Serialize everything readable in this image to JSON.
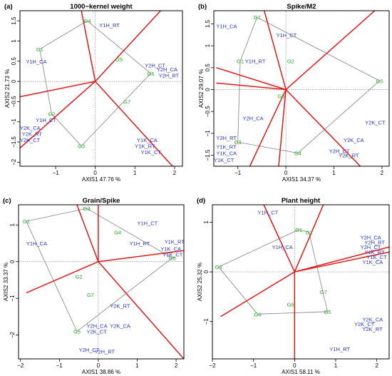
{
  "chart_data": [
    {
      "type": "scatter",
      "panel_letter": "(a)",
      "title": "1000−kernel weight",
      "xlabel": "AXIS1 47.76 %",
      "ylabel": "AXIS2 21.73 %",
      "xlim": [
        -1.9,
        2.2
      ],
      "ylim": [
        -2.1,
        1.75
      ],
      "xticks": [
        -1,
        0,
        1,
        2
      ],
      "yticks": [
        -2.0,
        -1.5,
        -1.0,
        -0.5,
        0.0,
        0.5,
        1.0,
        1.5
      ],
      "genotypes": [
        {
          "label": "G1",
          "x": -1.4,
          "y": 0.8
        },
        {
          "label": "G2",
          "x": -1.1,
          "y": -0.8
        },
        {
          "label": "G3",
          "x": -0.35,
          "y": -1.6
        },
        {
          "label": "G4",
          "x": -0.2,
          "y": 1.5
        },
        {
          "label": "G5",
          "x": 0.6,
          "y": 0.55
        },
        {
          "label": "G6",
          "x": 1.4,
          "y": 0.2
        },
        {
          "label": "G7",
          "x": 0.8,
          "y": -0.5
        }
      ],
      "hull": [
        "G4",
        "G1",
        "G2",
        "G3",
        "G6"
      ],
      "environments": [
        {
          "label": "Y1H_RT",
          "x": 0.1,
          "y": 1.4
        },
        {
          "label": "Y1H_CA",
          "x": -1.75,
          "y": 0.5
        },
        {
          "label": "Y1H_CT",
          "x": -1.5,
          "y": -0.95
        },
        {
          "label": "Y2K_CA",
          "x": -1.9,
          "y": -1.15
        },
        {
          "label": "Y2K_RT",
          "x": -1.85,
          "y": -1.3
        },
        {
          "label": "Y2K_CT",
          "x": -1.9,
          "y": -1.45
        },
        {
          "label": "Y2H_CT",
          "x": 1.25,
          "y": 0.4
        },
        {
          "label": "Y2H_CA",
          "x": 1.55,
          "y": 0.3
        },
        {
          "label": "Y2H_RT",
          "x": 1.6,
          "y": 0.15
        },
        {
          "label": "Y1K_CA",
          "x": 1.05,
          "y": -1.45
        },
        {
          "label": "Y1K_RT",
          "x": 1.0,
          "y": -1.6
        },
        {
          "label": "Y1K_CT",
          "x": 1.15,
          "y": -1.75
        }
      ],
      "rays": [
        [
          -0.35,
          1.75
        ],
        [
          1.65,
          1.75
        ],
        [
          -1.9,
          -0.38
        ],
        [
          1.95,
          -2.1
        ],
        [
          -1.9,
          -1.65
        ]
      ]
    },
    {
      "type": "scatter",
      "panel_letter": "(b)",
      "title": "Spike/M2",
      "xlabel": "AXIS1 34.37 %",
      "ylabel": "AXIS2 29.07 %",
      "xlim": [
        -1.5,
        2.15
      ],
      "ylim": [
        -1.75,
        1.8
      ],
      "xticks": [
        -1,
        0,
        1,
        2
      ],
      "yticks": [
        -1.5,
        -1.0,
        -0.5,
        0.0,
        0.5,
        1.0,
        1.5
      ],
      "genotypes": [
        {
          "label": "G1",
          "x": -0.95,
          "y": 0.65
        },
        {
          "label": "G2",
          "x": 0.1,
          "y": 0.65
        },
        {
          "label": "G3",
          "x": -1.0,
          "y": -1.2
        },
        {
          "label": "G4",
          "x": 0.25,
          "y": -1.45
        },
        {
          "label": "G5",
          "x": 1.95,
          "y": 0.2
        },
        {
          "label": "G6",
          "x": -0.1,
          "y": -0.15
        },
        {
          "label": "G7",
          "x": -0.6,
          "y": 1.65
        }
      ],
      "hull": [
        "G7",
        "G5",
        "G4",
        "G3",
        "G1"
      ],
      "environments": [
        {
          "label": "Y1H_CA",
          "x": -1.45,
          "y": 1.45
        },
        {
          "label": "Y1H_CT",
          "x": -0.2,
          "y": 1.25
        },
        {
          "label": "Y1H_RT",
          "x": -0.85,
          "y": 0.65
        },
        {
          "label": "Y2H_CA",
          "x": -0.9,
          "y": -0.65
        },
        {
          "label": "Y2H_RT",
          "x": -1.45,
          "y": -1.1
        },
        {
          "label": "Y1K_RT",
          "x": -1.45,
          "y": -1.3
        },
        {
          "label": "Y1K_CA",
          "x": -1.45,
          "y": -1.45
        },
        {
          "label": "Y1K_CT",
          "x": -1.5,
          "y": -1.6
        },
        {
          "label": "Y2K_CT",
          "x": 1.65,
          "y": -0.75
        },
        {
          "label": "Y2K_CA",
          "x": 1.2,
          "y": -1.15
        },
        {
          "label": "Y2H_CT",
          "x": 0.9,
          "y": -1.4
        },
        {
          "label": "Y2K_RT",
          "x": 1.1,
          "y": -1.5
        }
      ],
      "rays": [
        [
          -1.45,
          0.5
        ],
        [
          -1.45,
          0.15
        ],
        [
          -0.75,
          -1.75
        ],
        [
          -0.15,
          -1.75
        ],
        [
          1.55,
          -1.75
        ],
        [
          1.85,
          1.8
        ],
        [
          -0.45,
          1.8
        ]
      ]
    },
    {
      "type": "scatter",
      "panel_letter": "(c)",
      "title": "Grain/Spike",
      "xlabel": "AXIS1 38.86 %",
      "ylabel": "AXIS2 33.37 %",
      "xlim": [
        -2.05,
        2.2
      ],
      "ylim": [
        -2.65,
        1.55
      ],
      "xticks": [
        -2,
        -1,
        0,
        1,
        2
      ],
      "yticks": [
        -2,
        -1,
        0,
        1
      ],
      "genotypes": [
        {
          "label": "G1",
          "x": -1.85,
          "y": 1.1
        },
        {
          "label": "G2",
          "x": -0.5,
          "y": -0.4
        },
        {
          "label": "G3",
          "x": -0.3,
          "y": 1.45
        },
        {
          "label": "G4",
          "x": 0.5,
          "y": 0.8
        },
        {
          "label": "G5",
          "x": -0.55,
          "y": -1.9
        },
        {
          "label": "G6",
          "x": 1.9,
          "y": 0.1
        },
        {
          "label": "G7",
          "x": -0.2,
          "y": -0.9
        }
      ],
      "hull": [
        "G3",
        "G6",
        "G5",
        "G1"
      ],
      "environments": [
        {
          "label": "Y1H_CT",
          "x": 1.0,
          "y": 1.05
        },
        {
          "label": "Y1H_CA",
          "x": -1.85,
          "y": 0.5
        },
        {
          "label": "Y1H_RT",
          "x": 0.8,
          "y": 0.5
        },
        {
          "label": "Y1K_RT",
          "x": 1.7,
          "y": 0.55
        },
        {
          "label": "Y1K_CA",
          "x": 1.6,
          "y": 0.35
        },
        {
          "label": "Y1K_CT",
          "x": 1.65,
          "y": 0.2
        },
        {
          "label": "Y2K_RT",
          "x": 0.3,
          "y": -1.2
        },
        {
          "label": "Y2H_CA",
          "x": -0.3,
          "y": -1.75
        },
        {
          "label": "Y2K_CA",
          "x": 0.3,
          "y": -1.75
        },
        {
          "label": "Y2K_CT",
          "x": -0.3,
          "y": -1.9
        },
        {
          "label": "Y2H_CT",
          "x": -0.5,
          "y": -2.4
        },
        {
          "label": "Y2H_RT",
          "x": -0.1,
          "y": -2.45
        }
      ],
      "rays": [
        [
          -0.55,
          1.55
        ],
        [
          2.2,
          0.3
        ],
        [
          2.2,
          -2.65
        ],
        [
          -1.85,
          -0.85
        ],
        [
          0.0,
          1.55
        ]
      ]
    },
    {
      "type": "scatter",
      "panel_letter": "(d)",
      "title": "Plant height",
      "xlabel": "AXIS1 58.11 %",
      "ylabel": "AXIS2 25.32 %",
      "xlim": [
        -2.0,
        2.3
      ],
      "ylim": [
        -1.75,
        1.35
      ],
      "xticks": [
        -2,
        -1,
        0,
        1,
        2
      ],
      "yticks": [
        -1,
        0,
        1
      ],
      "genotypes": [
        {
          "label": "G1",
          "x": 0.1,
          "y": 0.85
        },
        {
          "label": "G2",
          "x": 0.35,
          "y": 0.8
        },
        {
          "label": "G3",
          "x": -1.85,
          "y": 0.1
        },
        {
          "label": "G4",
          "x": -0.9,
          "y": -0.85
        },
        {
          "label": "G5",
          "x": 0.8,
          "y": -0.8
        },
        {
          "label": "G6",
          "x": -0.1,
          "y": -0.65
        },
        {
          "label": "G7",
          "x": 0.7,
          "y": -0.4
        }
      ],
      "hull": [
        "G1",
        "G2",
        "G5",
        "G4",
        "G3"
      ],
      "environments": [
        {
          "label": "Y1H_CT",
          "x": -0.9,
          "y": 1.2
        },
        {
          "label": "Y1H_CA",
          "x": -0.55,
          "y": 0.5
        },
        {
          "label": "Y2H_CA",
          "x": 1.6,
          "y": 0.7
        },
        {
          "label": "Y2H_RT",
          "x": 1.7,
          "y": 0.6
        },
        {
          "label": "Y2H_CT",
          "x": 1.6,
          "y": 0.5
        },
        {
          "label": "Y1K_RT",
          "x": 1.7,
          "y": 0.4
        },
        {
          "label": "Y1K_CT",
          "x": 1.75,
          "y": 0.3
        },
        {
          "label": "Y1K_CA",
          "x": 1.65,
          "y": 0.2
        },
        {
          "label": "Y2K_CA",
          "x": 1.65,
          "y": -0.95
        },
        {
          "label": "Y2K_CT",
          "x": 1.45,
          "y": -1.05
        },
        {
          "label": "Y2K_RT",
          "x": 1.65,
          "y": -1.15
        },
        {
          "label": "Y1H_RT",
          "x": 0.85,
          "y": -1.55
        }
      ],
      "rays": [
        [
          -0.75,
          1.35
        ],
        [
          0.7,
          1.35
        ],
        [
          2.3,
          0.5
        ],
        [
          2.3,
          0.4
        ],
        [
          0.0,
          -1.75
        ],
        [
          -1.8,
          -0.9
        ]
      ]
    }
  ]
}
